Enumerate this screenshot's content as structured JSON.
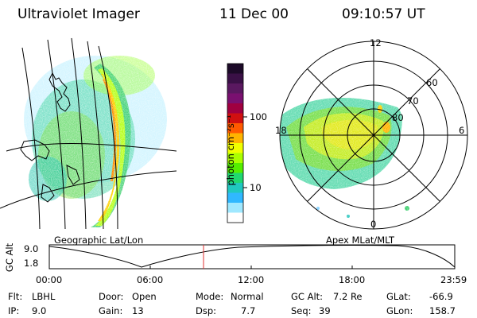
{
  "header": {
    "instrument": "Ultraviolet Imager",
    "date": "11 Dec 00",
    "time": "09:10:57 UT"
  },
  "left_panel": {
    "caption": "Geographic Lat/Lon"
  },
  "colorbar": {
    "unit_label": "photon cm⁻²s⁻¹",
    "ticks": [
      "100",
      "10"
    ],
    "colors": [
      "#1c0a28",
      "#3a1046",
      "#5a1860",
      "#7a1070",
      "#a00040",
      "#d01010",
      "#ff5a00",
      "#ffb400",
      "#f0ff00",
      "#aaff00",
      "#55ee00",
      "#20d870",
      "#20c8c0",
      "#30b8ff",
      "#a0e8ff",
      "#ffffff"
    ]
  },
  "right_panel": {
    "caption": "Apex MLat/MLT",
    "mlt_labels": [
      "12",
      "18",
      "6",
      "0"
    ],
    "mlat_labels": [
      "60",
      "70",
      "80"
    ]
  },
  "orbit_plot": {
    "ylabel": "GC Alt",
    "y_ticks": [
      "9.0",
      "1.8"
    ],
    "x_ticks": [
      "00:00",
      "06:00",
      "12:00",
      "18:00",
      "23:59"
    ],
    "marker_time": "09:10:57",
    "marker_color": "#e03030"
  },
  "status": {
    "flt_label": "Flt:",
    "flt_value": "LBHL",
    "ip_label": "IP:",
    "ip_value": "9.0",
    "door_label": "Door:",
    "door_value": "Open",
    "gain_label": "Gain:",
    "gain_value": "13",
    "mode_label": "Mode:",
    "mode_value": "Normal",
    "dsp_label": "Dsp:",
    "dsp_value": "7.7",
    "gcalt_label": "GC Alt:",
    "gcalt_value": "7.2 Re",
    "seq_label": "Seq:",
    "seq_value": "39",
    "glat_label": "GLat:",
    "glat_value": "-66.9",
    "glon_label": "GLon:",
    "glon_value": "158.7"
  }
}
